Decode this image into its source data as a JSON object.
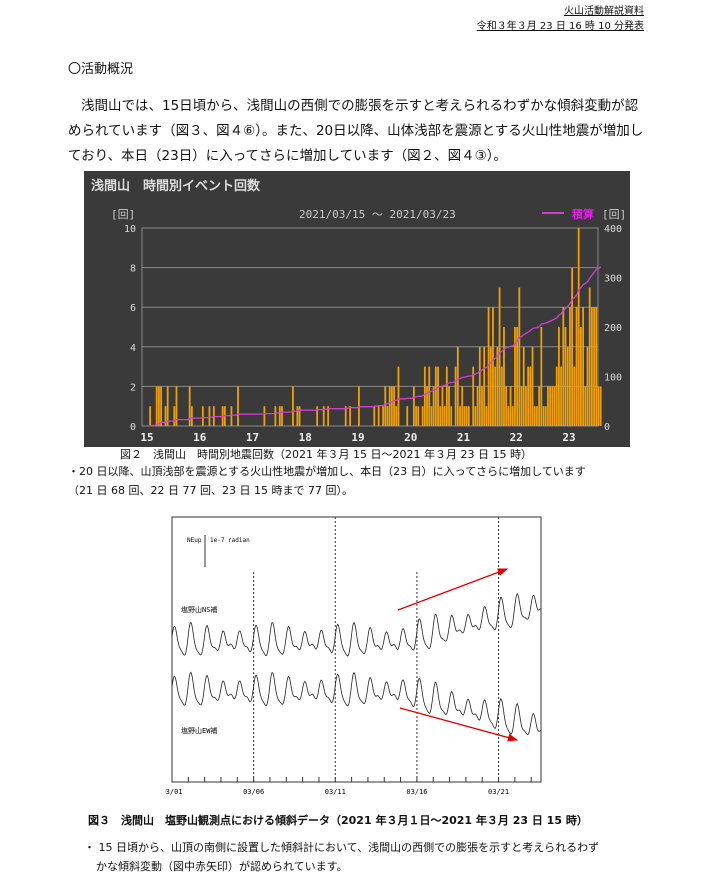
{
  "header": {
    "doc_type": "火山活動解説資料",
    "issued": "令和３年３月 23 日 16 時 10 分発表"
  },
  "section_title": "〇活動概況",
  "summary": "浅間山では、15日頃から、浅間山の西側での膨張を示すと考えられるわずかな傾斜変動が認められています（図３、図４⑥）。また、20日以降、山体浅部を震源とする火山性地震が増加しており、本日（23日）に入ってさらに増加しています（図２、図４③）。",
  "fig2": {
    "caption": "図２　浅間山　時間別地震回数（2021 年３月 15 日～2021 年３月 23 日 15 時）",
    "note1": "・20 日以降、山頂浅部を震源とする火山性地震が増加し、本日（23 日）に入ってさらに増加しています",
    "note2": "（21 日 68 回、22 日 77 回、23 日 15 時まで 77 回）。"
  },
  "fig3": {
    "caption": "図３　浅間山　塩野山観測点における傾斜データ（2021 年３月１日～2021 年３月 23 日 15 時）",
    "note1": "・ 15 日頃から、山頂の南側に設置した傾斜計において、浅間山の西側での膨張を示すと考えられるわず",
    "note2": "かな傾斜変動（図中赤矢印）が認められています。"
  },
  "chart_data": [
    {
      "type": "bar",
      "title": "浅間山　時間別イベント回数",
      "subtitle": "2021/03/15 ～ 2021/03/23",
      "ylabel": "[回]",
      "y2label": "[回]",
      "legend": "積算",
      "legend_position": "top-right",
      "ylim": [
        0,
        10
      ],
      "y2lim": [
        0,
        400
      ],
      "yticks": [
        "0",
        "2",
        "4",
        "6",
        "8",
        "10"
      ],
      "y2ticks": [
        "0",
        "100",
        "200",
        "300",
        "400"
      ],
      "xticks": [
        "15",
        "16",
        "17",
        "18",
        "19",
        "20",
        "21",
        "22",
        "23"
      ],
      "bar_color": "#f0a000",
      "line_color": "#d040d0",
      "hourly_counts": [
        0,
        1,
        0,
        0,
        2,
        2,
        2,
        0,
        1,
        2,
        0,
        0,
        1,
        2,
        0,
        0,
        0,
        0,
        0,
        2,
        1,
        0,
        0,
        0,
        0,
        1,
        0,
        0,
        1,
        0,
        1,
        0,
        0,
        0,
        1,
        1,
        0,
        0,
        1,
        0,
        0,
        2,
        0,
        0,
        0,
        0,
        0,
        0,
        0,
        0,
        0,
        0,
        0,
        1,
        0,
        0,
        0,
        0,
        1,
        0,
        1,
        1,
        0,
        0,
        0,
        0,
        2,
        0,
        1,
        1,
        0,
        0,
        0,
        0,
        0,
        0,
        0,
        1,
        0,
        0,
        1,
        0,
        1,
        0,
        0,
        0,
        0,
        0,
        0,
        0,
        1,
        0,
        1,
        0,
        0,
        0,
        2,
        0,
        0,
        0,
        0,
        0,
        0,
        1,
        0,
        1,
        0,
        1,
        2,
        1,
        2,
        2,
        2,
        1,
        3,
        0,
        0,
        0,
        1,
        0,
        0,
        2,
        1,
        1,
        0,
        1,
        3,
        2,
        3,
        1,
        2,
        3,
        3,
        1,
        2,
        1,
        3,
        2,
        1,
        0,
        3,
        4,
        1,
        2,
        1,
        1,
        1,
        0,
        3,
        1,
        2,
        4,
        2,
        4,
        1,
        6,
        4,
        6,
        3,
        4,
        7,
        3,
        5,
        2,
        1,
        2,
        1,
        5,
        5,
        7,
        2,
        4,
        2,
        3,
        3,
        4,
        1,
        1,
        2,
        5,
        1,
        1,
        2,
        2,
        2,
        2,
        3,
        5,
        3,
        6,
        5,
        4,
        6,
        8,
        3,
        6,
        10,
        5,
        6,
        2,
        4,
        7,
        6,
        6,
        6,
        2,
        2
      ]
    },
    {
      "type": "line",
      "title": "傾斜データ",
      "scale_label": "NEup",
      "scale_value": "1e-7 radian",
      "xticks": [
        "03/01",
        "03/06",
        "03/11",
        "03/16",
        "03/21"
      ],
      "series": [
        {
          "name": "塩野山NS補",
          "trend": "up from 03/15"
        },
        {
          "name": "塩野山EW補",
          "trend": "down from 03/15"
        }
      ],
      "arrow_color": "#e00000"
    }
  ]
}
